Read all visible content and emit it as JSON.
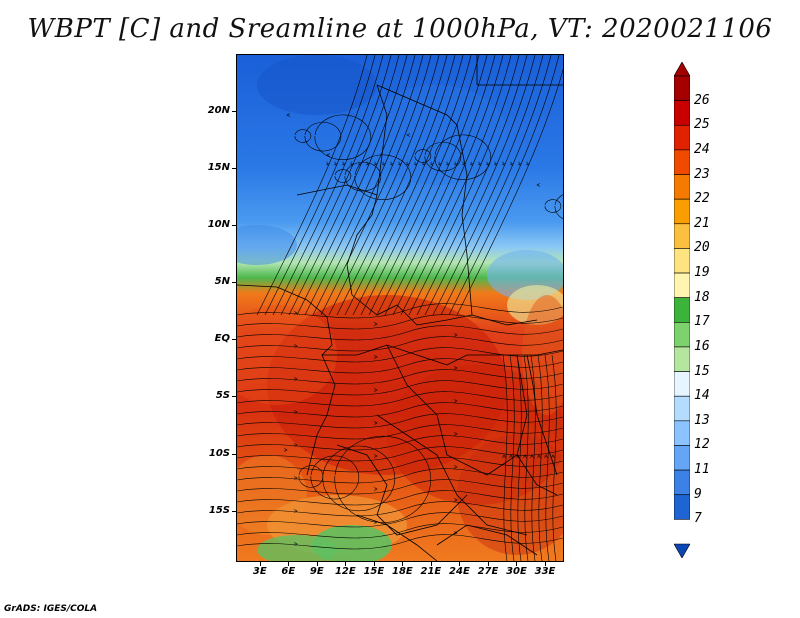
{
  "title": "WBPT [C] and Sreamline at 1000hPa, VT: 2020021106",
  "footer": "GrADS: IGES/COLA",
  "map": {
    "lat_labels": [
      "20N",
      "15N",
      "10N",
      "5N",
      "EQ",
      "5S",
      "10S",
      "15S"
    ],
    "lon_labels": [
      "3E",
      "6E",
      "9E",
      "12E",
      "15E",
      "18E",
      "21E",
      "24E",
      "27E",
      "30E",
      "33E"
    ],
    "lat_values": [
      20,
      15,
      10,
      5,
      0,
      -5,
      -10,
      -15
    ],
    "lon_values": [
      3,
      6,
      9,
      12,
      15,
      18,
      21,
      24,
      27,
      30,
      33
    ],
    "lon_range": [
      0.5,
      35
    ],
    "lat_range": [
      -19.5,
      25
    ]
  },
  "colorbar": {
    "labels": [
      "26",
      "25",
      "24",
      "23",
      "22",
      "21",
      "20",
      "19",
      "18",
      "17",
      "16",
      "15",
      "14",
      "13",
      "12",
      "11",
      "9",
      "7"
    ],
    "colors": [
      "#a50000",
      "#c80000",
      "#e12200",
      "#f04a00",
      "#f57a00",
      "#f99d00",
      "#fcc040",
      "#fde480",
      "#fff5b0",
      "#3cb43c",
      "#7ed26e",
      "#b4e6a0",
      "#e6f5ff",
      "#b4dcff",
      "#8cc3ff",
      "#64a5f5",
      "#3c82e6",
      "#1e64d2",
      "#0a46b4"
    ]
  },
  "colors": {
    "cold": "#1e6ee0",
    "warm": "#e03a10",
    "transition_green": "#5fc35f"
  }
}
